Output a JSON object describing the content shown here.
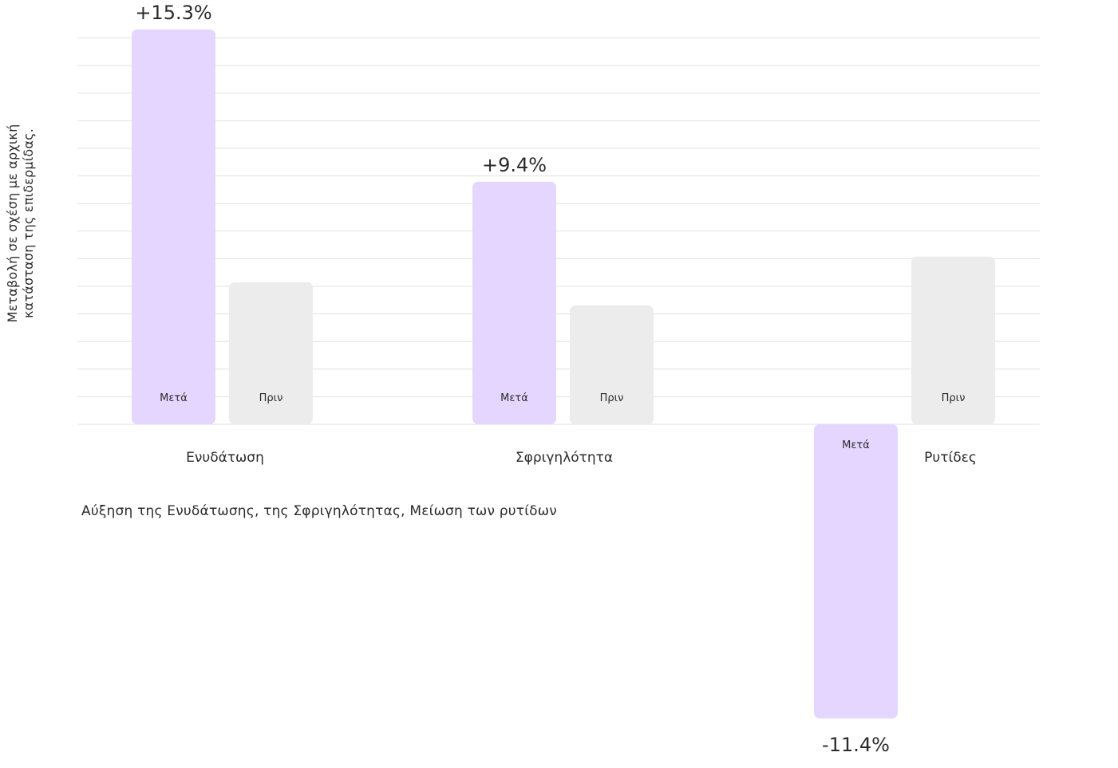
{
  "chart_data": {
    "type": "bar",
    "categories": [
      "Ενυδάτωση",
      "Σφριγηλότητα",
      "Ρυτίδες"
    ],
    "series": [
      {
        "name": "Μετά",
        "values": [
          15.3,
          9.4,
          -11.4
        ]
      },
      {
        "name": "Πριν",
        "values": [
          5.5,
          4.6,
          6.5
        ]
      }
    ],
    "data_labels": [
      "+15.3%",
      "+9.4%",
      "-11.4%"
    ],
    "ylabel": "Μεταβολή σε σχέση με αρχική κατάσταση της επιδερμίδας.",
    "caption": "Αύξηση της Ενυδάτωσης, της Σφριγηλότητας, Μείωση των ρυτίδων",
    "ylim": [
      -11.4,
      15.3
    ],
    "grid": true,
    "legend": "none",
    "colors": {
      "after": "#e5d6ff",
      "before": "#ececec",
      "grid": "#e0e0e0",
      "text": "#2b2b2b"
    }
  }
}
